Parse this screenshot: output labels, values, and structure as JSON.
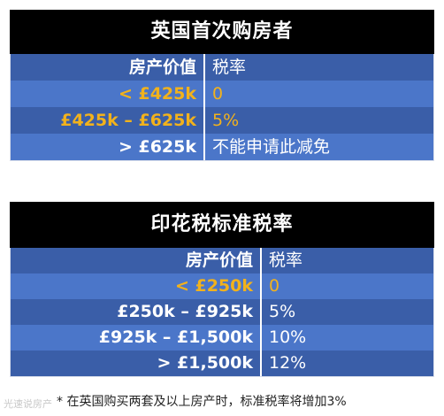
{
  "first_time_buyers": {
    "title": "英国首次购房者",
    "header": {
      "property_value": "房产价值",
      "tax_rate": "税率"
    },
    "rows": [
      {
        "value": "< £425k",
        "rate": "0",
        "highlight": true
      },
      {
        "value": "£425k – £625k",
        "rate": "5%",
        "highlight": true
      },
      {
        "value": "> £625k",
        "rate": "不能申请此减免",
        "highlight": false
      }
    ]
  },
  "standard_rates": {
    "title": "印花税标准税率",
    "header": {
      "property_value": "房产价值",
      "tax_rate": "税率"
    },
    "rows": [
      {
        "value": "< £250k",
        "rate": "0",
        "highlight": true
      },
      {
        "value": "£250k – £925k",
        "rate": "5%",
        "highlight": false
      },
      {
        "value": "£925k – £1,500k",
        "rate": "10%",
        "highlight": false
      },
      {
        "value": "> £1,500k",
        "rate": "12%",
        "highlight": false
      }
    ]
  },
  "footnote": "* 在英国购买两套及以上房产时，标准税率将增加3%",
  "watermark": "光速说房产",
  "colors": {
    "title_bg": "#000000",
    "row_dark": "#3a5ea8",
    "row_light": "#4b76c9",
    "highlight": "#f2b21c"
  }
}
